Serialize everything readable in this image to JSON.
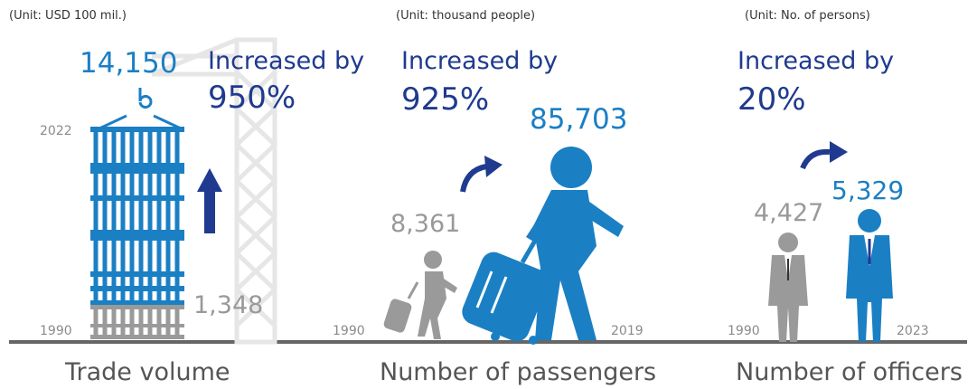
{
  "colors": {
    "navy": "#1f3a8f",
    "blue": "#1b7fc4",
    "grey": "#9a9a9a",
    "light_grey": "#e6e6e6",
    "baseline": "#666666"
  },
  "trade": {
    "unit": "(Unit: USD 100 mil.)",
    "value_2022": "14,150",
    "increase_label": "Increased by",
    "increase_pct": "950%",
    "year_end": "2022",
    "value_1990": "1,348",
    "year_start": "1990",
    "title": "Trade volume"
  },
  "passengers": {
    "unit": "(Unit: thousand people)",
    "increase_label": "Increased by",
    "increase_pct": "925%",
    "value_2019": "85,703",
    "value_1990": "8,361",
    "year_start": "1990",
    "year_end": "2019",
    "title": "Number of passengers"
  },
  "officers": {
    "unit": "(Unit: No. of persons)",
    "increase_label": "Increased by",
    "increase_pct": "20%",
    "value_2023": "5,329",
    "value_1990": "4,427",
    "year_start": "1990",
    "year_end": "2023",
    "title": "Number of officers"
  }
}
